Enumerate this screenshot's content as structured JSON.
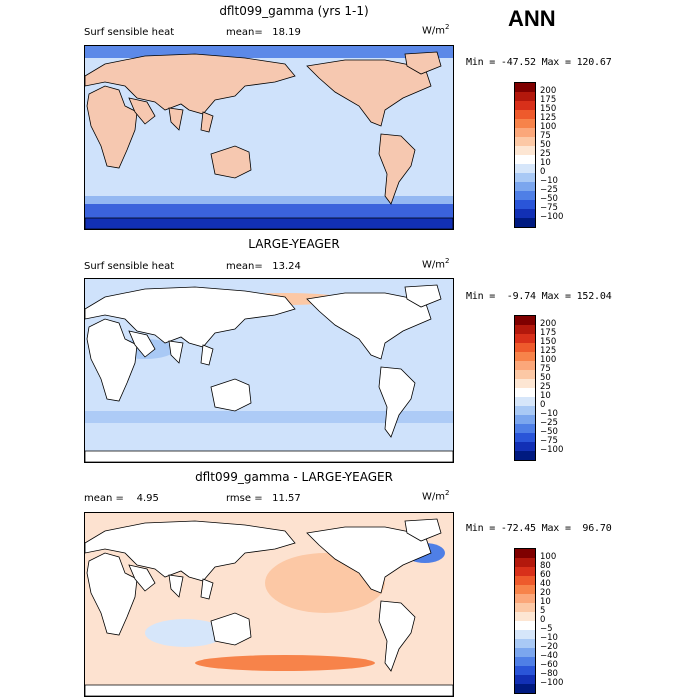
{
  "season": "ANN",
  "panels": [
    {
      "title": "dflt099_gamma (yrs 1-1)",
      "left_label": "Surf sensible heat",
      "mid_label": "mean=   18.19",
      "units": "W/m",
      "units_sup": "2",
      "minmax": "Min = -47.52 Max = 120.67",
      "ticks": [
        "200",
        "175",
        "150",
        "125",
        "100",
        "75",
        "50",
        "25",
        "10",
        "0",
        "−10",
        "−25",
        "−50",
        "−75",
        "−100"
      ],
      "colors": [
        "#7f0000",
        "#b3180c",
        "#d8301a",
        "#ee5a2c",
        "#f7834a",
        "#fba77a",
        "#fcc8a5",
        "#fde6d3",
        "#ffffff",
        "#d6e6fa",
        "#a9c9f5",
        "#7ba6ee",
        "#4f7fe6",
        "#2a55d8",
        "#1230b5",
        "#001a80"
      ],
      "land_color": "#f6c8b0",
      "ocean_color": "#cfe2fb"
    },
    {
      "title": "LARGE-YEAGER",
      "left_label": "Surf sensible heat",
      "mid_label": "mean=   13.24",
      "units": "W/m",
      "units_sup": "2",
      "minmax": "Min =  -9.74 Max = 152.04",
      "ticks": [
        "200",
        "175",
        "150",
        "125",
        "100",
        "75",
        "50",
        "25",
        "10",
        "0",
        "−10",
        "−25",
        "−50",
        "−75",
        "−100"
      ],
      "colors": [
        "#7f0000",
        "#b3180c",
        "#d8301a",
        "#ee5a2c",
        "#f7834a",
        "#fba77a",
        "#fcc8a5",
        "#fde6d3",
        "#ffffff",
        "#d6e6fa",
        "#a9c9f5",
        "#7ba6ee",
        "#4f7fe6",
        "#2a55d8",
        "#1230b5",
        "#001a80"
      ],
      "land_color": "#ffffff",
      "ocean_color": "#cfe2fb"
    },
    {
      "title": "dflt099_gamma - LARGE-YEAGER",
      "left_label": "mean =    4.95",
      "mid_label": "rmse =   11.57",
      "units": "W/m",
      "units_sup": "2",
      "minmax": "Min = -72.45 Max =  96.70",
      "ticks": [
        "100",
        "80",
        "60",
        "40",
        "20",
        "10",
        "5",
        "0",
        "−5",
        "−10",
        "−20",
        "−40",
        "−60",
        "−80",
        "−100"
      ],
      "colors": [
        "#7f0000",
        "#b3180c",
        "#d8301a",
        "#ee5a2c",
        "#f7834a",
        "#fba77a",
        "#fcc8a5",
        "#fde6d3",
        "#ffffff",
        "#d6e6fa",
        "#a9c9f5",
        "#7ba6ee",
        "#4f7fe6",
        "#2a55d8",
        "#1230b5",
        "#001a80"
      ],
      "land_color": "#ffffff",
      "ocean_color": "#fde2d0"
    }
  ]
}
